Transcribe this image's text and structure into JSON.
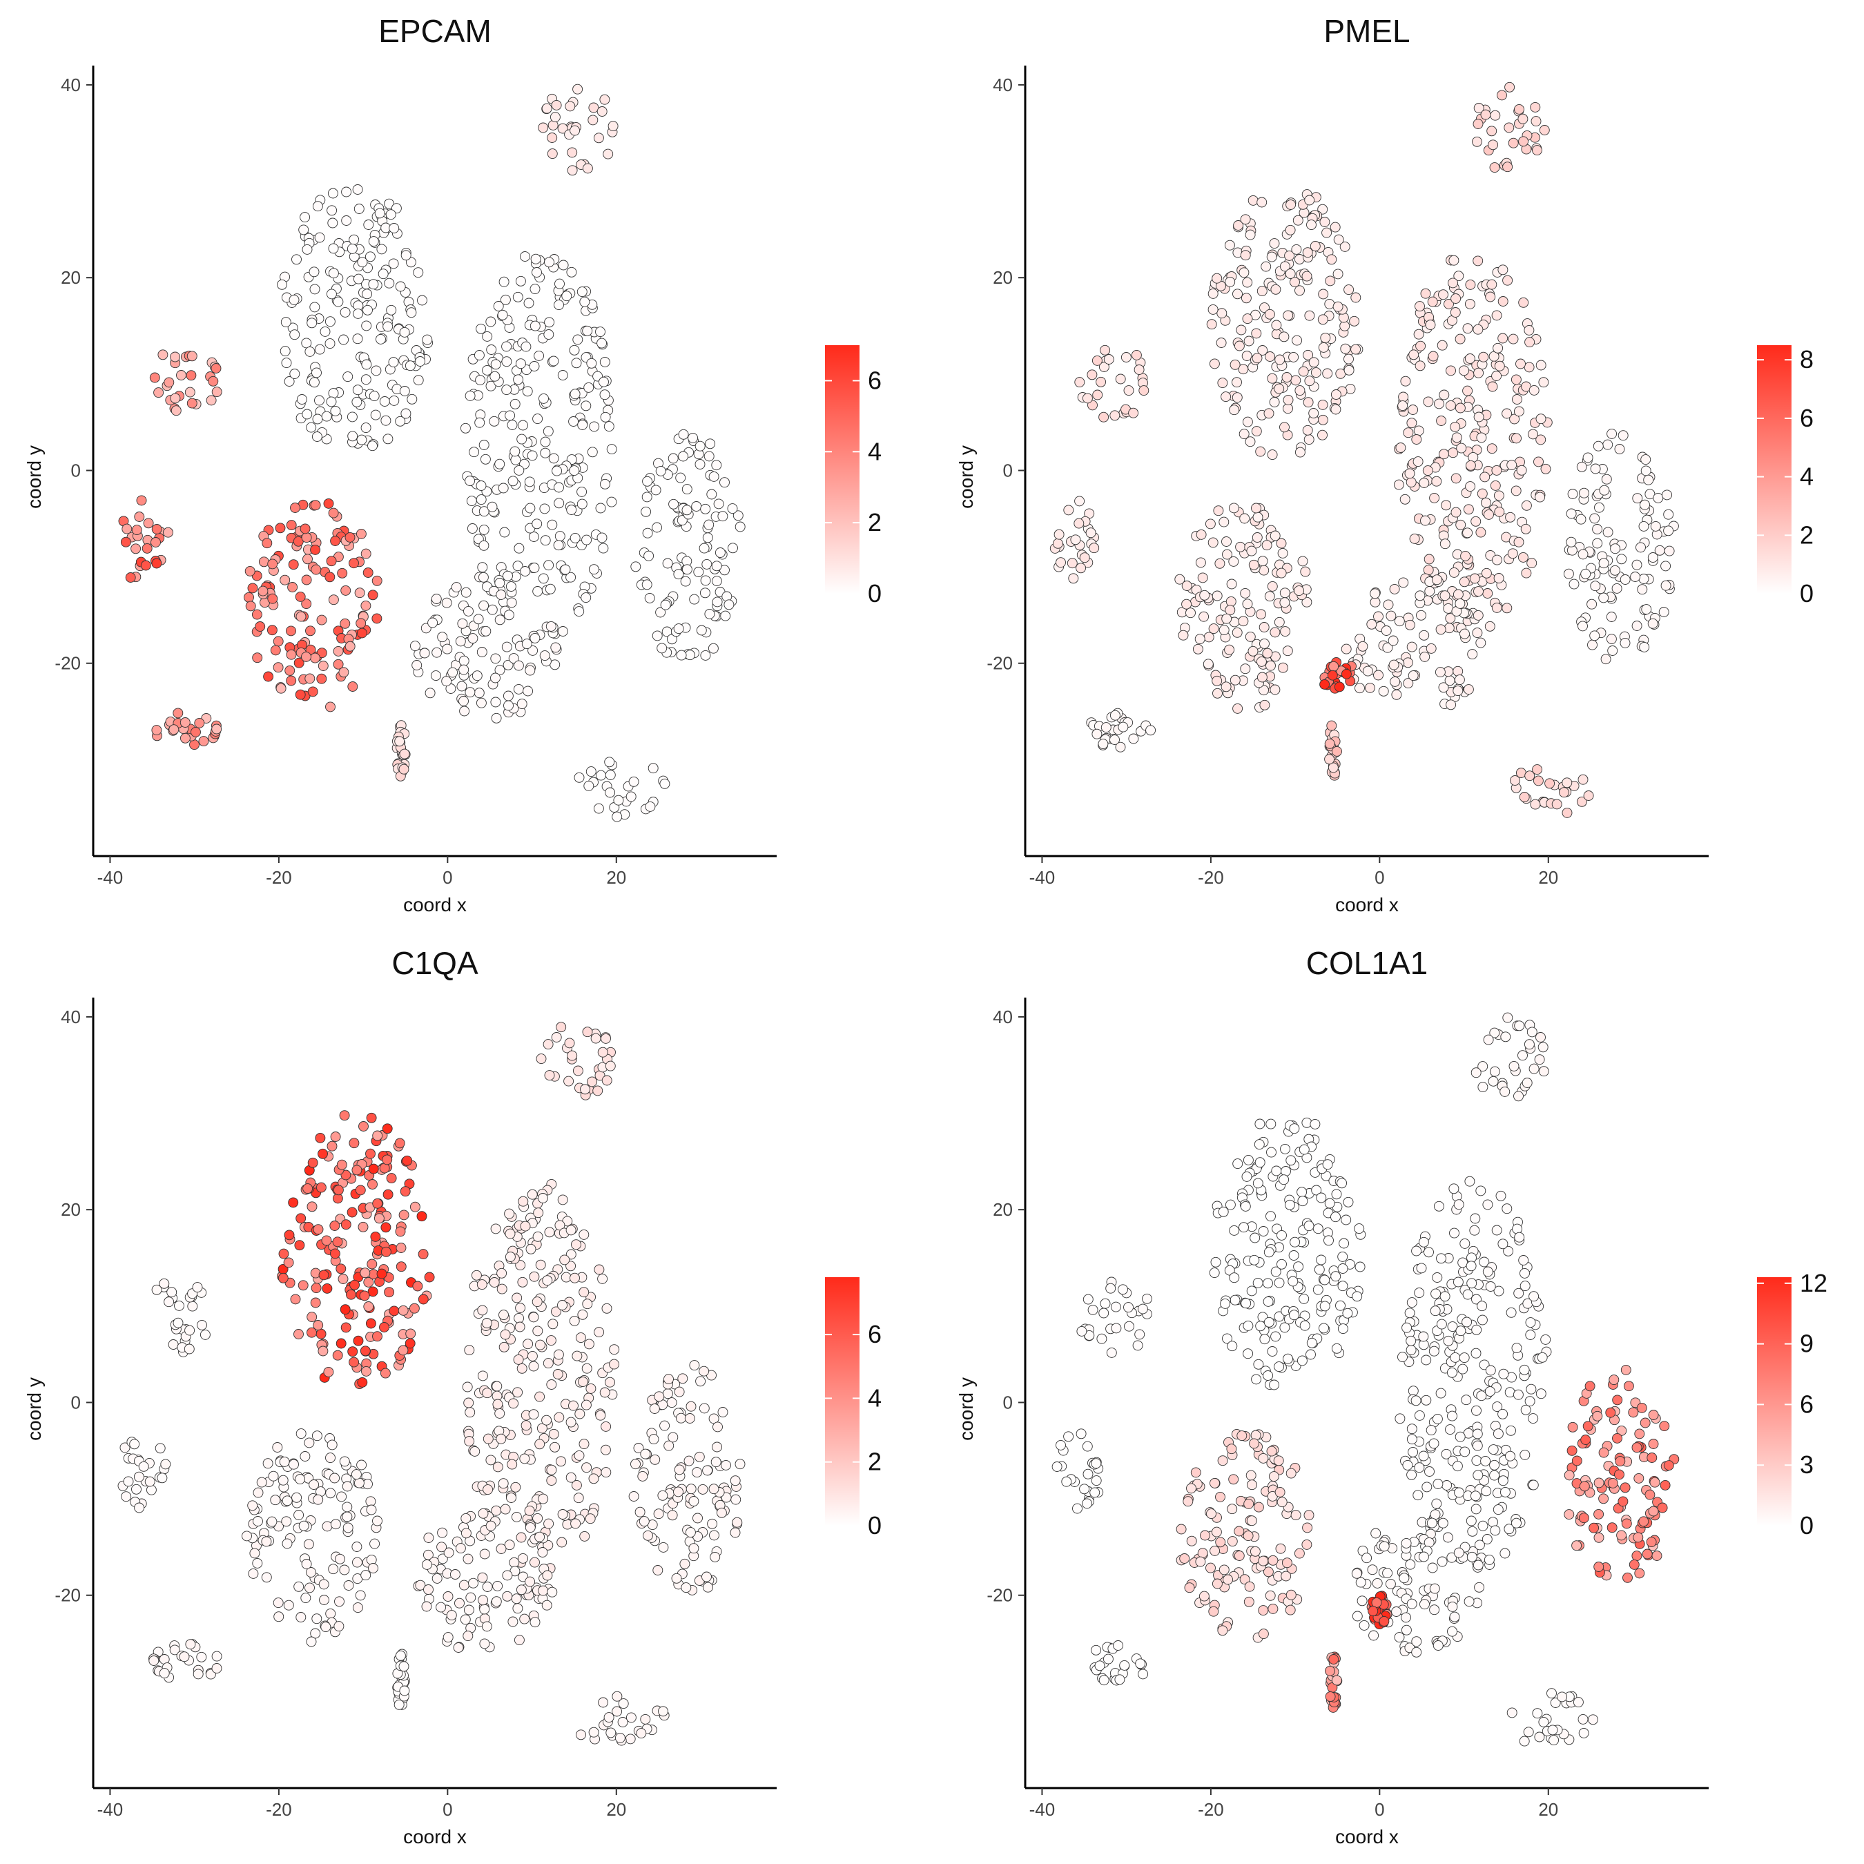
{
  "figure": {
    "panels": [
      {
        "title": "EPCAM",
        "legend_ticks": [
          "0",
          "2",
          "4",
          "6"
        ]
      },
      {
        "title": "PMEL",
        "legend_ticks": [
          "0",
          "2",
          "4",
          "6",
          "8"
        ]
      },
      {
        "title": "C1QA",
        "legend_ticks": [
          "0",
          "2",
          "4",
          "6"
        ]
      },
      {
        "title": "COL1A1",
        "legend_ticks": [
          "0",
          "3",
          "6",
          "9",
          "12"
        ]
      }
    ]
  },
  "chart_data": [
    {
      "type": "scatter",
      "title": "EPCAM",
      "xlabel": "coord x",
      "ylabel": "coord y",
      "xlim": [
        -42,
        39
      ],
      "ylim": [
        -40,
        42
      ],
      "x_ticks": [
        -40,
        -20,
        0,
        20
      ],
      "y_ticks": [
        -20,
        0,
        20,
        40
      ],
      "color_scale": {
        "low": "#ffffff",
        "high": "#ff2a1a",
        "min": 0,
        "max": 7,
        "ticks": [
          0,
          2,
          4,
          6
        ]
      },
      "clusters": [
        {
          "name": "top-left cluster",
          "x": [
            -20,
            -2
          ],
          "y": [
            1,
            30
          ],
          "value": 0.1
        },
        {
          "name": "right arc",
          "x": [
            2,
            20
          ],
          "y": [
            -18,
            23
          ],
          "value": 0.1
        },
        {
          "name": "right lobe",
          "x": [
            22,
            35
          ],
          "y": [
            -20,
            4
          ],
          "value": 0.1
        },
        {
          "name": "small top crescent",
          "x": [
            11,
            20
          ],
          "y": [
            31,
            40
          ],
          "value": 0.8
        },
        {
          "name": "left elongated",
          "x": [
            -36,
            -27
          ],
          "y": [
            5,
            13
          ],
          "value": 3.0
        },
        {
          "name": "left oval",
          "x": [
            -39,
            -33
          ],
          "y": [
            -12,
            -3
          ],
          "value": 4.5
        },
        {
          "name": "center-left mass",
          "x": [
            -24,
            -8
          ],
          "y": [
            -25,
            -3
          ],
          "value": 4.2
        },
        {
          "name": "center-right mass",
          "x": [
            -4,
            13
          ],
          "y": [
            -26,
            -11
          ],
          "value": 0.2
        },
        {
          "name": "bottom-left elongated",
          "x": [
            -35,
            -27
          ],
          "y": [
            -29,
            -25
          ],
          "value": 3.5
        },
        {
          "name": "bottom-right elongated",
          "x": [
            15,
            26
          ],
          "y": [
            -36,
            -30
          ],
          "value": 0.1
        },
        {
          "name": "bottom stem",
          "x": [
            -6,
            -5
          ],
          "y": [
            -32,
            -26
          ],
          "value": 1.0
        }
      ]
    },
    {
      "type": "scatter",
      "title": "PMEL",
      "xlabel": "coord x",
      "ylabel": "coord y",
      "xlim": [
        -42,
        39
      ],
      "ylim": [
        -40,
        42
      ],
      "x_ticks": [
        -40,
        -20,
        0,
        20
      ],
      "y_ticks": [
        -20,
        0,
        20,
        40
      ],
      "color_scale": {
        "low": "#ffffff",
        "high": "#ff2a1a",
        "min": 0,
        "max": 8.5,
        "ticks": [
          0,
          2,
          4,
          6,
          8
        ]
      },
      "clusters": [
        {
          "name": "top-left cluster",
          "x": [
            -20,
            -2
          ],
          "y": [
            1,
            30
          ],
          "value": 0.8
        },
        {
          "name": "right arc",
          "x": [
            2,
            20
          ],
          "y": [
            -18,
            23
          ],
          "value": 1.0
        },
        {
          "name": "right lobe",
          "x": [
            22,
            35
          ],
          "y": [
            -20,
            4
          ],
          "value": 0.3
        },
        {
          "name": "small top crescent",
          "x": [
            11,
            20
          ],
          "y": [
            31,
            40
          ],
          "value": 1.5
        },
        {
          "name": "left elongated",
          "x": [
            -36,
            -27
          ],
          "y": [
            5,
            13
          ],
          "value": 1.2
        },
        {
          "name": "left oval",
          "x": [
            -39,
            -33
          ],
          "y": [
            -12,
            -3
          ],
          "value": 0.8
        },
        {
          "name": "center-left mass",
          "x": [
            -24,
            -8
          ],
          "y": [
            -25,
            -3
          ],
          "value": 0.8
        },
        {
          "name": "center-right mass",
          "x": [
            -4,
            13
          ],
          "y": [
            -26,
            -11
          ],
          "value": 0.6
        },
        {
          "name": "bottom-left elongated",
          "x": [
            -35,
            -27
          ],
          "y": [
            -29,
            -25
          ],
          "value": 0.3
        },
        {
          "name": "bottom-right elongated",
          "x": [
            15,
            26
          ],
          "y": [
            -36,
            -30
          ],
          "value": 1.5
        },
        {
          "name": "bottom stem",
          "x": [
            -6,
            -5
          ],
          "y": [
            -32,
            -26
          ],
          "value": 2.0
        },
        {
          "name": "dense spot",
          "x": [
            -7,
            -3
          ],
          "y": [
            -23,
            -19
          ],
          "value": 7.5
        }
      ]
    },
    {
      "type": "scatter",
      "title": "C1QA",
      "xlabel": "coord x",
      "ylabel": "coord y",
      "xlim": [
        -42,
        39
      ],
      "ylim": [
        -40,
        42
      ],
      "x_ticks": [
        -40,
        -20,
        0,
        20
      ],
      "y_ticks": [
        -20,
        0,
        20,
        40
      ],
      "color_scale": {
        "low": "#ffffff",
        "high": "#ff2a1a",
        "min": 0,
        "max": 7.8,
        "ticks": [
          0,
          2,
          4,
          6
        ]
      },
      "clusters": [
        {
          "name": "top-left cluster",
          "x": [
            -20,
            -2
          ],
          "y": [
            1,
            30
          ],
          "value": 5.5
        },
        {
          "name": "right arc",
          "x": [
            2,
            20
          ],
          "y": [
            -18,
            23
          ],
          "value": 0.6
        },
        {
          "name": "right lobe",
          "x": [
            22,
            35
          ],
          "y": [
            -20,
            4
          ],
          "value": 0.4
        },
        {
          "name": "small top crescent",
          "x": [
            11,
            20
          ],
          "y": [
            31,
            40
          ],
          "value": 1.0
        },
        {
          "name": "left elongated",
          "x": [
            -36,
            -27
          ],
          "y": [
            5,
            13
          ],
          "value": 0.2
        },
        {
          "name": "left oval",
          "x": [
            -39,
            -33
          ],
          "y": [
            -12,
            -3
          ],
          "value": 0.2
        },
        {
          "name": "center-left mass",
          "x": [
            -24,
            -8
          ],
          "y": [
            -25,
            -3
          ],
          "value": 0.3
        },
        {
          "name": "center-right mass",
          "x": [
            -4,
            13
          ],
          "y": [
            -26,
            -11
          ],
          "value": 0.4
        },
        {
          "name": "bottom-left elongated",
          "x": [
            -35,
            -27
          ],
          "y": [
            -29,
            -25
          ],
          "value": 0.3
        },
        {
          "name": "bottom-right elongated",
          "x": [
            15,
            26
          ],
          "y": [
            -36,
            -30
          ],
          "value": 0.3
        },
        {
          "name": "bottom stem",
          "x": [
            -6,
            -5
          ],
          "y": [
            -32,
            -26
          ],
          "value": 0.1
        }
      ]
    },
    {
      "type": "scatter",
      "title": "COL1A1",
      "xlabel": "coord x",
      "ylabel": "coord y",
      "xlim": [
        -42,
        39
      ],
      "ylim": [
        -40,
        42
      ],
      "x_ticks": [
        -40,
        -20,
        0,
        20
      ],
      "y_ticks": [
        -20,
        0,
        20,
        40
      ],
      "color_scale": {
        "low": "#ffffff",
        "high": "#ff2a1a",
        "min": 0,
        "max": 12.3,
        "ticks": [
          0,
          3,
          6,
          9,
          12
        ]
      },
      "clusters": [
        {
          "name": "top-left cluster",
          "x": [
            -20,
            -2
          ],
          "y": [
            1,
            30
          ],
          "value": 0.1
        },
        {
          "name": "right arc",
          "x": [
            2,
            20
          ],
          "y": [
            -18,
            23
          ],
          "value": 0.2
        },
        {
          "name": "right lobe",
          "x": [
            22,
            35
          ],
          "y": [
            -20,
            4
          ],
          "value": 6.5
        },
        {
          "name": "small top crescent",
          "x": [
            11,
            20
          ],
          "y": [
            31,
            40
          ],
          "value": 0.5
        },
        {
          "name": "left elongated",
          "x": [
            -36,
            -27
          ],
          "y": [
            5,
            13
          ],
          "value": 0.2
        },
        {
          "name": "left oval",
          "x": [
            -39,
            -33
          ],
          "y": [
            -12,
            -3
          ],
          "value": 0.1
        },
        {
          "name": "center-left mass",
          "x": [
            -24,
            -8
          ],
          "y": [
            -25,
            -3
          ],
          "value": 2.0
        },
        {
          "name": "center-right mass",
          "x": [
            -4,
            13
          ],
          "y": [
            -26,
            -11
          ],
          "value": 0.3
        },
        {
          "name": "bottom-left elongated",
          "x": [
            -35,
            -27
          ],
          "y": [
            -29,
            -25
          ],
          "value": 0.1
        },
        {
          "name": "bottom-right elongated",
          "x": [
            15,
            26
          ],
          "y": [
            -36,
            -30
          ],
          "value": 0.3
        },
        {
          "name": "bottom stem",
          "x": [
            -6,
            -5
          ],
          "y": [
            -32,
            -26
          ],
          "value": 6.0
        },
        {
          "name": "dense spot",
          "x": [
            -1,
            1
          ],
          "y": [
            -23,
            -20
          ],
          "value": 11.0
        }
      ]
    }
  ]
}
